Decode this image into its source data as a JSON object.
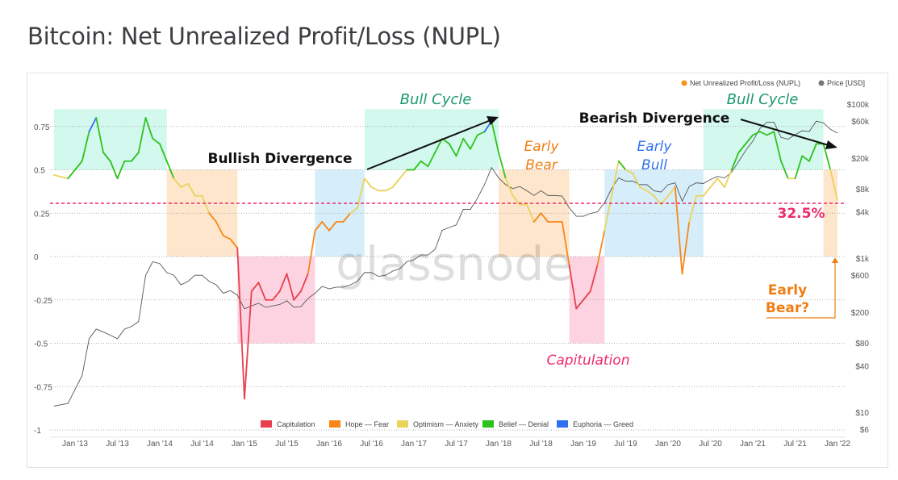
{
  "title": "Bitcoin: Net Unrealized Profit/Loss (NUPL)",
  "chart_data": {
    "type": "line",
    "title": "Bitcoin: Net Unrealized Profit/Loss (NUPL)",
    "legend_top": [
      {
        "name": "Net Unrealized Profit/Loss (NUPL)",
        "color": "#f7931a"
      },
      {
        "name": "Price [USD]",
        "color": "#777777"
      }
    ],
    "legend_bottom": [
      {
        "name": "Capitulation",
        "color": "#e8404f"
      },
      {
        "name": "Hope — Fear",
        "color": "#f7871a"
      },
      {
        "name": "Optimism — Anxiety",
        "color": "#ebd35a"
      },
      {
        "name": "Belief — Denial",
        "color": "#2ec31c"
      },
      {
        "name": "Euphoria — Greed",
        "color": "#2f6ff0"
      }
    ],
    "x_ticks": [
      "Jan '13",
      "Jul '13",
      "Jan '14",
      "Jul '14",
      "Jan '15",
      "Jul '15",
      "Jan '16",
      "Jul '16",
      "Jan '17",
      "Jul '17",
      "Jan '18",
      "Jul '18",
      "Jan '19",
      "Jul '19",
      "Jan '20",
      "Jul '20",
      "Jan '21",
      "Jul '21",
      "Jan '22"
    ],
    "y_left_ticks": [
      "0.75",
      "0.5",
      "0.25",
      "0",
      "-0.25",
      "-0.5",
      "-0.75",
      "-1"
    ],
    "y_left_range": [
      -1,
      1
    ],
    "y_right_ticks": [
      "$100k",
      "$60k",
      "$20k",
      "$8k",
      "$4k",
      "$1k",
      "$600",
      "$200",
      "$80",
      "$40",
      "$10",
      "$6"
    ],
    "y_right_scale": "log",
    "grid": "horizontal dotted",
    "watermark": "glassnode",
    "dates": [
      "2012-10",
      "2012-12",
      "2013-02",
      "2013-03",
      "2013-04",
      "2013-05",
      "2013-06",
      "2013-07",
      "2013-08",
      "2013-09",
      "2013-10",
      "2013-11",
      "2013-12",
      "2014-01",
      "2014-02",
      "2014-03",
      "2014-04",
      "2014-05",
      "2014-06",
      "2014-07",
      "2014-08",
      "2014-09",
      "2014-10",
      "2014-11",
      "2014-12",
      "2015-01",
      "2015-02",
      "2015-03",
      "2015-04",
      "2015-05",
      "2015-06",
      "2015-07",
      "2015-08",
      "2015-09",
      "2015-10",
      "2015-11",
      "2015-12",
      "2016-01",
      "2016-02",
      "2016-03",
      "2016-04",
      "2016-05",
      "2016-06",
      "2016-07",
      "2016-08",
      "2016-09",
      "2016-10",
      "2016-11",
      "2016-12",
      "2017-01",
      "2017-02",
      "2017-03",
      "2017-04",
      "2017-05",
      "2017-06",
      "2017-07",
      "2017-08",
      "2017-09",
      "2017-10",
      "2017-11",
      "2017-12",
      "2018-01",
      "2018-02",
      "2018-03",
      "2018-04",
      "2018-05",
      "2018-06",
      "2018-07",
      "2018-08",
      "2018-09",
      "2018-10",
      "2018-11",
      "2018-12",
      "2019-01",
      "2019-02",
      "2019-03",
      "2019-04",
      "2019-05",
      "2019-06",
      "2019-07",
      "2019-08",
      "2019-09",
      "2019-10",
      "2019-11",
      "2019-12",
      "2020-01",
      "2020-02",
      "2020-03",
      "2020-04",
      "2020-05",
      "2020-06",
      "2020-07",
      "2020-08",
      "2020-09",
      "2020-10",
      "2020-11",
      "2020-12",
      "2021-01",
      "2021-02",
      "2021-03",
      "2021-04",
      "2021-05",
      "2021-06",
      "2021-07",
      "2021-08",
      "2021-09",
      "2021-10",
      "2021-11",
      "2021-12",
      "2022-01"
    ],
    "nupl": [
      0.47,
      0.45,
      0.55,
      0.72,
      0.8,
      0.6,
      0.55,
      0.45,
      0.55,
      0.55,
      0.6,
      0.8,
      0.68,
      0.65,
      0.55,
      0.45,
      0.4,
      0.42,
      0.35,
      0.35,
      0.25,
      0.2,
      0.12,
      0.1,
      0.05,
      -0.82,
      -0.2,
      -0.15,
      -0.25,
      -0.25,
      -0.2,
      -0.1,
      -0.25,
      -0.2,
      -0.1,
      0.15,
      0.2,
      0.15,
      0.2,
      0.2,
      0.25,
      0.28,
      0.45,
      0.4,
      0.38,
      0.38,
      0.4,
      0.45,
      0.5,
      0.5,
      0.55,
      0.52,
      0.6,
      0.68,
      0.65,
      0.58,
      0.68,
      0.62,
      0.7,
      0.72,
      0.78,
      0.6,
      0.45,
      0.35,
      0.3,
      0.3,
      0.2,
      0.25,
      0.2,
      0.2,
      0.2,
      -0.05,
      -0.3,
      -0.25,
      -0.2,
      -0.05,
      0.15,
      0.35,
      0.55,
      0.5,
      0.48,
      0.4,
      0.38,
      0.35,
      0.3,
      0.35,
      0.4,
      -0.1,
      0.2,
      0.35,
      0.35,
      0.4,
      0.45,
      0.4,
      0.5,
      0.6,
      0.65,
      0.7,
      0.72,
      0.7,
      0.72,
      0.55,
      0.45,
      0.45,
      0.58,
      0.55,
      0.65,
      0.65,
      0.5,
      0.325
    ],
    "price": [
      12,
      13,
      30,
      90,
      120,
      110,
      100,
      90,
      120,
      130,
      150,
      600,
      900,
      850,
      650,
      600,
      450,
      500,
      600,
      600,
      500,
      450,
      350,
      380,
      330,
      220,
      240,
      260,
      230,
      240,
      250,
      280,
      230,
      235,
      300,
      350,
      430,
      400,
      420,
      420,
      450,
      500,
      650,
      650,
      580,
      600,
      680,
      730,
      900,
      950,
      1100,
      1100,
      1300,
      2300,
      2500,
      2700,
      4300,
      4300,
      6000,
      9000,
      15000,
      11000,
      9000,
      8000,
      8500,
      7500,
      6500,
      7500,
      6500,
      6500,
      6400,
      4500,
      3500,
      3500,
      3800,
      4000,
      5200,
      8000,
      11000,
      10000,
      10000,
      9000,
      9000,
      7500,
      7200,
      9000,
      9500,
      5500,
      8500,
      9500,
      9300,
      10500,
      11500,
      11000,
      13000,
      18000,
      25000,
      33000,
      48000,
      58000,
      58000,
      37000,
      35000,
      40000,
      45000,
      44000,
      60000,
      57000,
      47000,
      42000
    ],
    "phases": [
      {
        "from": "2012-10",
        "to": "2014-02",
        "phase": "Belief — Denial"
      },
      {
        "from": "2014-02",
        "to": "2014-12",
        "phase": "Hope — Fear"
      },
      {
        "from": "2014-12",
        "to": "2015-11",
        "phase": "Capitulation"
      },
      {
        "from": "2015-11",
        "to": "2016-06",
        "phase": "Optimism — Anxiety"
      },
      {
        "from": "2016-06",
        "to": "2018-01",
        "phase": "Belief — Denial"
      },
      {
        "from": "2018-01",
        "to": "2018-11",
        "phase": "Hope — Fear"
      },
      {
        "from": "2018-11",
        "to": "2019-04",
        "phase": "Capitulation"
      },
      {
        "from": "2019-04",
        "to": "2020-06",
        "phase": "Optimism — Anxiety"
      },
      {
        "from": "2020-06",
        "to": "2021-11",
        "phase": "Belief — Denial"
      },
      {
        "from": "2021-11",
        "to": "2022-01",
        "phase": "Hope — Fear"
      }
    ],
    "reference_line": {
      "value": 0.325,
      "label": "32.5%",
      "color": "#ee2a6b"
    },
    "annotations": {
      "bull_cycle_1": "Bull Cycle",
      "bull_cycle_2": "Bull Cycle",
      "bullish_divergence": "Bullish Divergence",
      "bearish_divergence": "Bearish Divergence",
      "early_bear_1": "Early",
      "early_bear_2": "Bear",
      "early_bull_1": "Early",
      "early_bull_2": "Bull",
      "capitulation": "Capitulation",
      "early_bear_q1": "Early",
      "early_bear_q2": "Bear?"
    }
  }
}
